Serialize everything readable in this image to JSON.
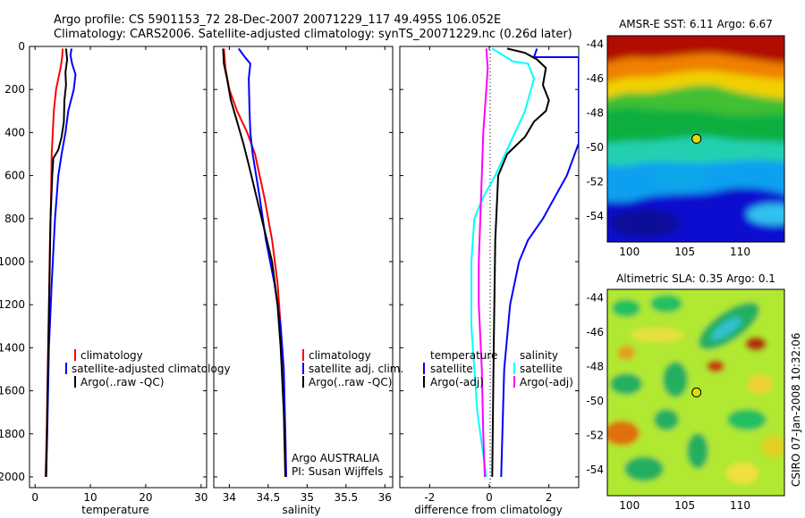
{
  "title": {
    "line1": "Argo profile: CS 5901153_72 28-Dec-2007 20071229_117 49.495S 106.052E",
    "line2": "Climatology: CARS2006. Satellite-adjusted climatology: synTS_20071229.nc (0.26d later)"
  },
  "side_stamp": "CSIRO 07-Jan-2008 10:32:06",
  "colors": {
    "climatology": "#ff0000",
    "satellite": "#0000ff",
    "argo": "#000000",
    "cyan": "#00ffff",
    "magenta": "#ff00ff",
    "dot": "#000000"
  },
  "chart_data": [
    {
      "type": "line",
      "panel": "temperature",
      "xlabel": "temperature",
      "xlim": [
        -1,
        31
      ],
      "ylim": [
        2050,
        0
      ],
      "xticks": [
        0,
        10,
        20,
        30
      ],
      "yticks": [
        0,
        200,
        400,
        600,
        800,
        1000,
        1200,
        1400,
        1600,
        1800,
        2000
      ],
      "series": [
        {
          "name": "climatology",
          "color": "#ff0000",
          "x": [
            5.0,
            4.9,
            4.6,
            4.2,
            3.8,
            3.4,
            3.2,
            3.0,
            2.9,
            2.7,
            2.5,
            2.3,
            2.1,
            1.9
          ],
          "y": [
            10,
            50,
            100,
            150,
            200,
            300,
            400,
            500,
            700,
            900,
            1200,
            1500,
            1800,
            2000
          ]
        },
        {
          "name": "satellite-adjusted climatology",
          "color": "#0000ff",
          "x": [
            6.6,
            6.4,
            6.7,
            7.3,
            7.0,
            6.0,
            5.5,
            4.8,
            4.2,
            3.6,
            3.0,
            2.5,
            2.2,
            2.0
          ],
          "y": [
            10,
            40,
            80,
            130,
            200,
            300,
            400,
            500,
            600,
            800,
            1100,
            1400,
            1800,
            2000
          ]
        },
        {
          "name": "Argo(..raw -QC)",
          "color": "#000000",
          "x": [
            5.6,
            5.8,
            5.5,
            5.6,
            5.3,
            5.2,
            4.8,
            4.2,
            3.3,
            3.1,
            2.8,
            2.6,
            2.4,
            2.2,
            2.0
          ],
          "y": [
            10,
            60,
            120,
            180,
            250,
            350,
            420,
            480,
            520,
            600,
            800,
            1100,
            1400,
            1700,
            2000
          ]
        }
      ],
      "legend": [
        "climatology",
        "satellite-adjusted climatology",
        "Argo(..raw -QC)"
      ]
    },
    {
      "type": "line",
      "panel": "salinity",
      "xlabel": "salinity",
      "xlim": [
        33.8,
        36.1
      ],
      "ylim": [
        2050,
        0
      ],
      "xticks": [
        34,
        34.5,
        35,
        35.5,
        36
      ],
      "series": [
        {
          "name": "climatology",
          "color": "#ff0000",
          "x": [
            33.93,
            33.95,
            34.0,
            34.1,
            34.23,
            34.33,
            34.45,
            34.55,
            34.62,
            34.66,
            34.7,
            34.72,
            34.73
          ],
          "y": [
            10,
            100,
            200,
            300,
            400,
            500,
            700,
            900,
            1100,
            1300,
            1600,
            1800,
            2000
          ]
        },
        {
          "name": "satellite adj. clim.",
          "color": "#0000ff",
          "x": [
            34.12,
            34.2,
            34.27,
            34.25,
            34.26,
            34.27,
            34.3,
            34.39,
            34.47,
            34.58,
            34.66,
            34.7,
            34.72,
            34.73
          ],
          "y": [
            10,
            50,
            80,
            150,
            300,
            400,
            500,
            700,
            900,
            1100,
            1300,
            1500,
            1800,
            2000
          ]
        },
        {
          "name": "Argo(..raw -QC)",
          "color": "#000000",
          "x": [
            33.92,
            33.93,
            33.97,
            34.02,
            34.1,
            34.18,
            34.25,
            34.35,
            34.45,
            34.55,
            34.62,
            34.66,
            34.7,
            34.72
          ],
          "y": [
            10,
            80,
            150,
            250,
            350,
            450,
            550,
            700,
            850,
            1000,
            1200,
            1400,
            1700,
            2000
          ]
        }
      ],
      "legend": [
        "climatology",
        "satellite adj. clim.",
        "Argo(..raw -QC)"
      ],
      "note": [
        "Argo AUSTRALIA",
        "PI: Susan Wijffels"
      ]
    },
    {
      "type": "line",
      "panel": "difference",
      "xlabel": "difference from climatology",
      "xlim": [
        -3,
        3
      ],
      "ylim": [
        2050,
        0
      ],
      "xticks": [
        -2,
        0,
        2
      ],
      "legend_groups": [
        {
          "title": "temperature",
          "items": [
            {
              "name": "satellite",
              "color": "#0000ff"
            },
            {
              "name": "Argo(-adj)",
              "color": "#000000"
            }
          ]
        },
        {
          "title": "salinity",
          "items": [
            {
              "name": "satellite",
              "color": "#00ffff"
            },
            {
              "name": "Argo(-adj)",
              "color": "#ff00ff"
            }
          ]
        }
      ],
      "series": [
        {
          "name": "temperature satellite",
          "color": "#0000ff",
          "x": [
            1.6,
            1.5,
            3.0,
            3.0,
            3.0,
            2.6,
            2.2,
            1.8,
            1.3,
            1.0,
            0.7,
            0.5,
            0.4
          ],
          "y": [
            10,
            50,
            50,
            60,
            450,
            600,
            700,
            800,
            900,
            1000,
            1200,
            1500,
            2000
          ]
        },
        {
          "name": "temperature Argo(-adj)",
          "color": "#000000",
          "x": [
            0.6,
            1.2,
            1.6,
            1.9,
            1.8,
            2.0,
            1.9,
            1.5,
            1.2,
            0.6,
            0.3,
            0.2,
            0.15,
            0.1
          ],
          "y": [
            10,
            30,
            60,
            100,
            180,
            250,
            300,
            350,
            420,
            500,
            600,
            900,
            1400,
            2000
          ]
        },
        {
          "name": "salinity satellite",
          "color": "#00ffff",
          "x": [
            0.1,
            0.8,
            1.3,
            1.5,
            1.2,
            0.7,
            0.2,
            -0.2,
            -0.5,
            -0.6,
            -0.6,
            -0.4,
            -0.1
          ],
          "y": [
            10,
            70,
            80,
            150,
            300,
            450,
            600,
            700,
            800,
            1000,
            1300,
            1700,
            2000
          ]
        },
        {
          "name": "salinity Argo(-adj)",
          "color": "#ff00ff",
          "x": [
            -0.1,
            -0.05,
            -0.1,
            -0.15,
            -0.2,
            -0.25,
            -0.3,
            -0.35,
            -0.35,
            -0.25,
            -0.2,
            -0.15
          ],
          "y": [
            10,
            100,
            200,
            300,
            400,
            600,
            800,
            1000,
            1200,
            1500,
            1800,
            2000
          ]
        }
      ]
    },
    {
      "type": "heatmap",
      "panel": "sst_map",
      "title": "AMSR-E SST: 6.11  Argo: 6.67",
      "xlim": [
        98,
        114
      ],
      "ylim": [
        -55.5,
        -43.5
      ],
      "xticks": [
        100,
        105,
        110
      ],
      "yticks": [
        -44,
        -46,
        -48,
        -50,
        -52,
        -54
      ],
      "marker": {
        "lon": 106.052,
        "lat": -49.495
      }
    },
    {
      "type": "heatmap",
      "panel": "sla_map",
      "title": "Altimetric SLA: 0.35  Argo: 0.1",
      "xlim": [
        98,
        114
      ],
      "ylim": [
        -55.5,
        -43.5
      ],
      "xticks": [
        100,
        105,
        110
      ],
      "yticks": [
        -44,
        -46,
        -48,
        -50,
        -52,
        -54
      ],
      "marker": {
        "lon": 106.052,
        "lat": -49.495
      }
    }
  ]
}
